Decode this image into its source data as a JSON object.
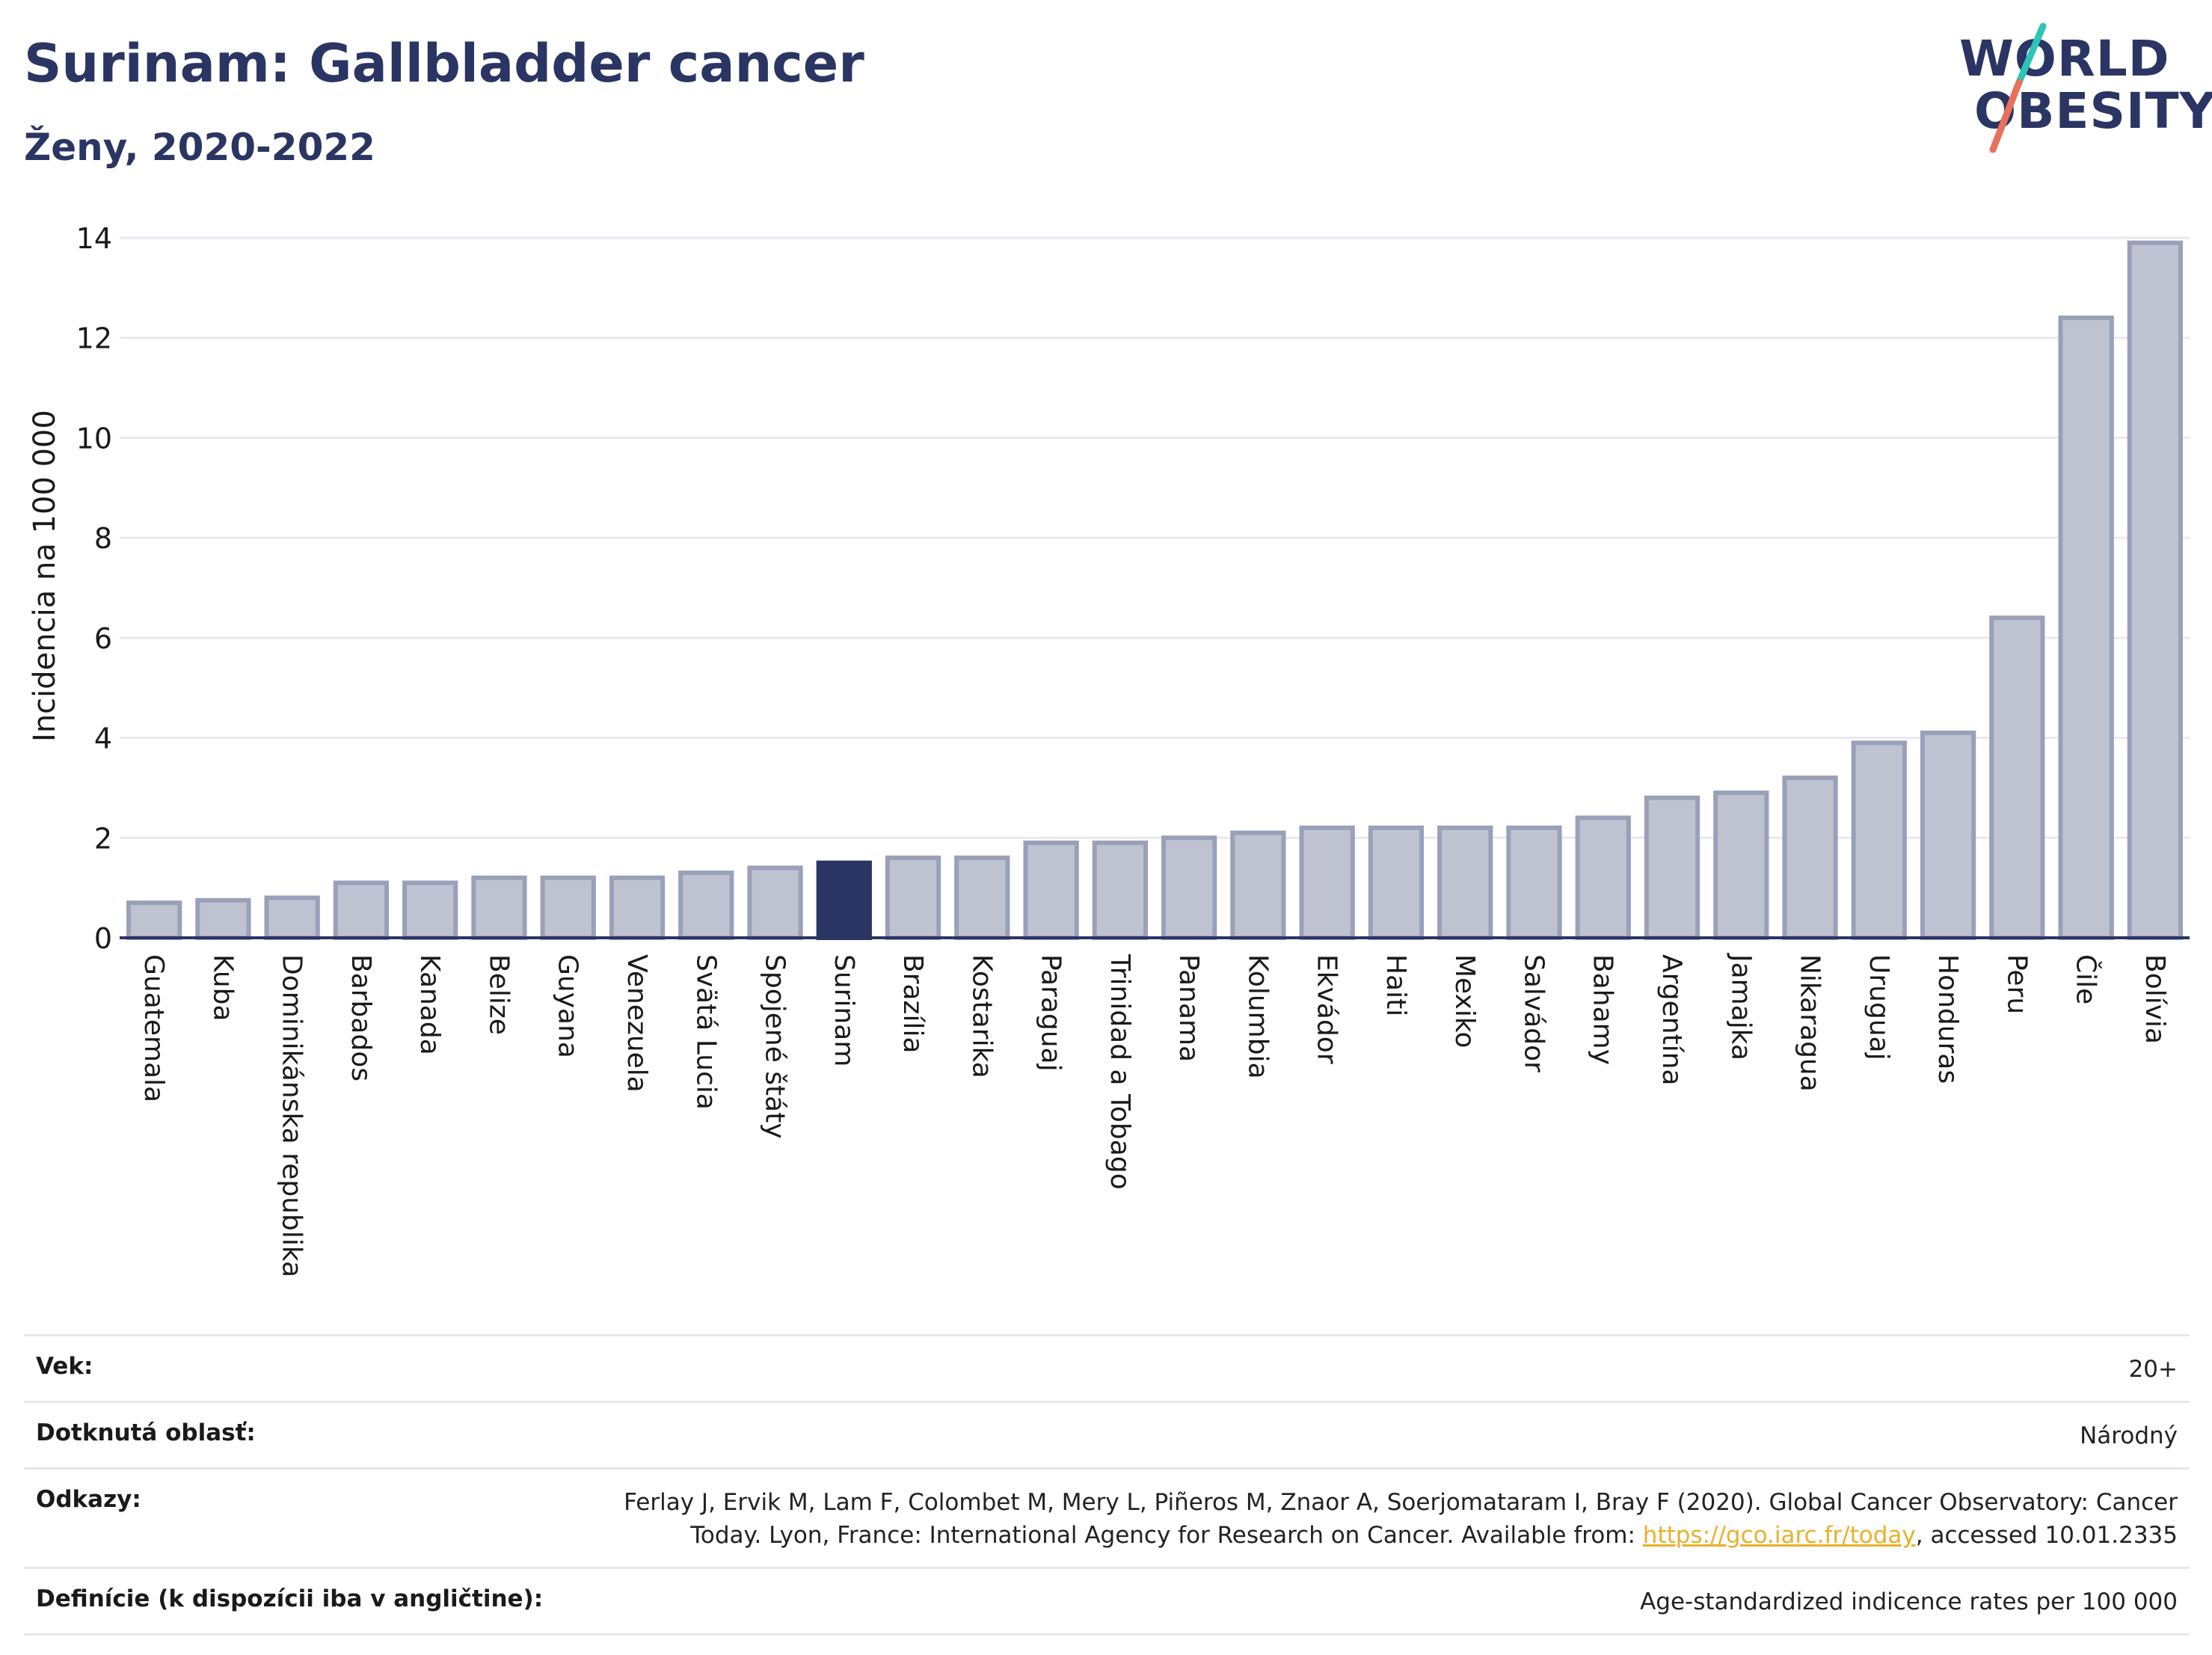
{
  "header": {
    "title": "Surinam: Gallbladder cancer",
    "subtitle": "Ženy, 2020-2022"
  },
  "logo": {
    "line1": "WORLD",
    "line2": "OBESITY",
    "slash_colors": [
      "#2ec4b6",
      "#e8705f"
    ]
  },
  "colors": {
    "bar_fill": "#bfc3d1",
    "bar_stroke": "#9aa0b8",
    "highlight": "#2b3563",
    "grid": "#e8eaf0",
    "axis": "#2b3563"
  },
  "chart_data": {
    "type": "bar",
    "title": "",
    "xlabel": "",
    "ylabel": "Incidencia na 100 000",
    "ylim": [
      0,
      14
    ],
    "yticks": [
      0,
      2,
      4,
      6,
      8,
      10,
      12,
      14
    ],
    "grid": true,
    "highlight_category": "Surinam",
    "categories": [
      "Guatemala",
      "Kuba",
      "Dominikánska republika",
      "Barbados",
      "Kanada",
      "Belize",
      "Guyana",
      "Venezuela",
      "Svätá Lucia",
      "Spojené štáty",
      "Surinam",
      "Brazília",
      "Kostarika",
      "Paraguaj",
      "Trinidad a Tobago",
      "Panama",
      "Kolumbia",
      "Ekvádor",
      "Haiti",
      "Mexiko",
      "Salvádor",
      "Bahamy",
      "Argentína",
      "Jamajka",
      "Nikaragua",
      "Uruguaj",
      "Honduras",
      "Peru",
      "Čile",
      "Bolívia"
    ],
    "values": [
      0.7,
      0.75,
      0.8,
      1.1,
      1.1,
      1.2,
      1.2,
      1.2,
      1.3,
      1.4,
      1.5,
      1.6,
      1.6,
      1.9,
      1.9,
      2.0,
      2.1,
      2.2,
      2.2,
      2.2,
      2.2,
      2.4,
      2.8,
      2.9,
      3.2,
      3.9,
      4.1,
      6.4,
      12.4,
      13.9
    ]
  },
  "metadata": {
    "rows": [
      {
        "label": "Vek:",
        "value": "20+"
      },
      {
        "label": "Dotknutá oblasť:",
        "value": "Národný"
      },
      {
        "label": "Odkazy:",
        "value_line1": "Ferlay J, Ervik M, Lam F, Colombet M, Mery L, Piñeros M, Znaor A, Soerjomataram I, Bray F (2020). Global Cancer Observatory: Cancer",
        "value_line2_prefix": "Today. Lyon, France: International Agency for Research on Cancer. Available from: ",
        "link": "https://gco.iarc.fr/today",
        "value_line2_suffix": ", accessed 10.01.2335"
      },
      {
        "label": "Definície (k dispozícii iba v angličtine):",
        "value": "Age-standardized indicence rates per 100 000"
      }
    ]
  }
}
